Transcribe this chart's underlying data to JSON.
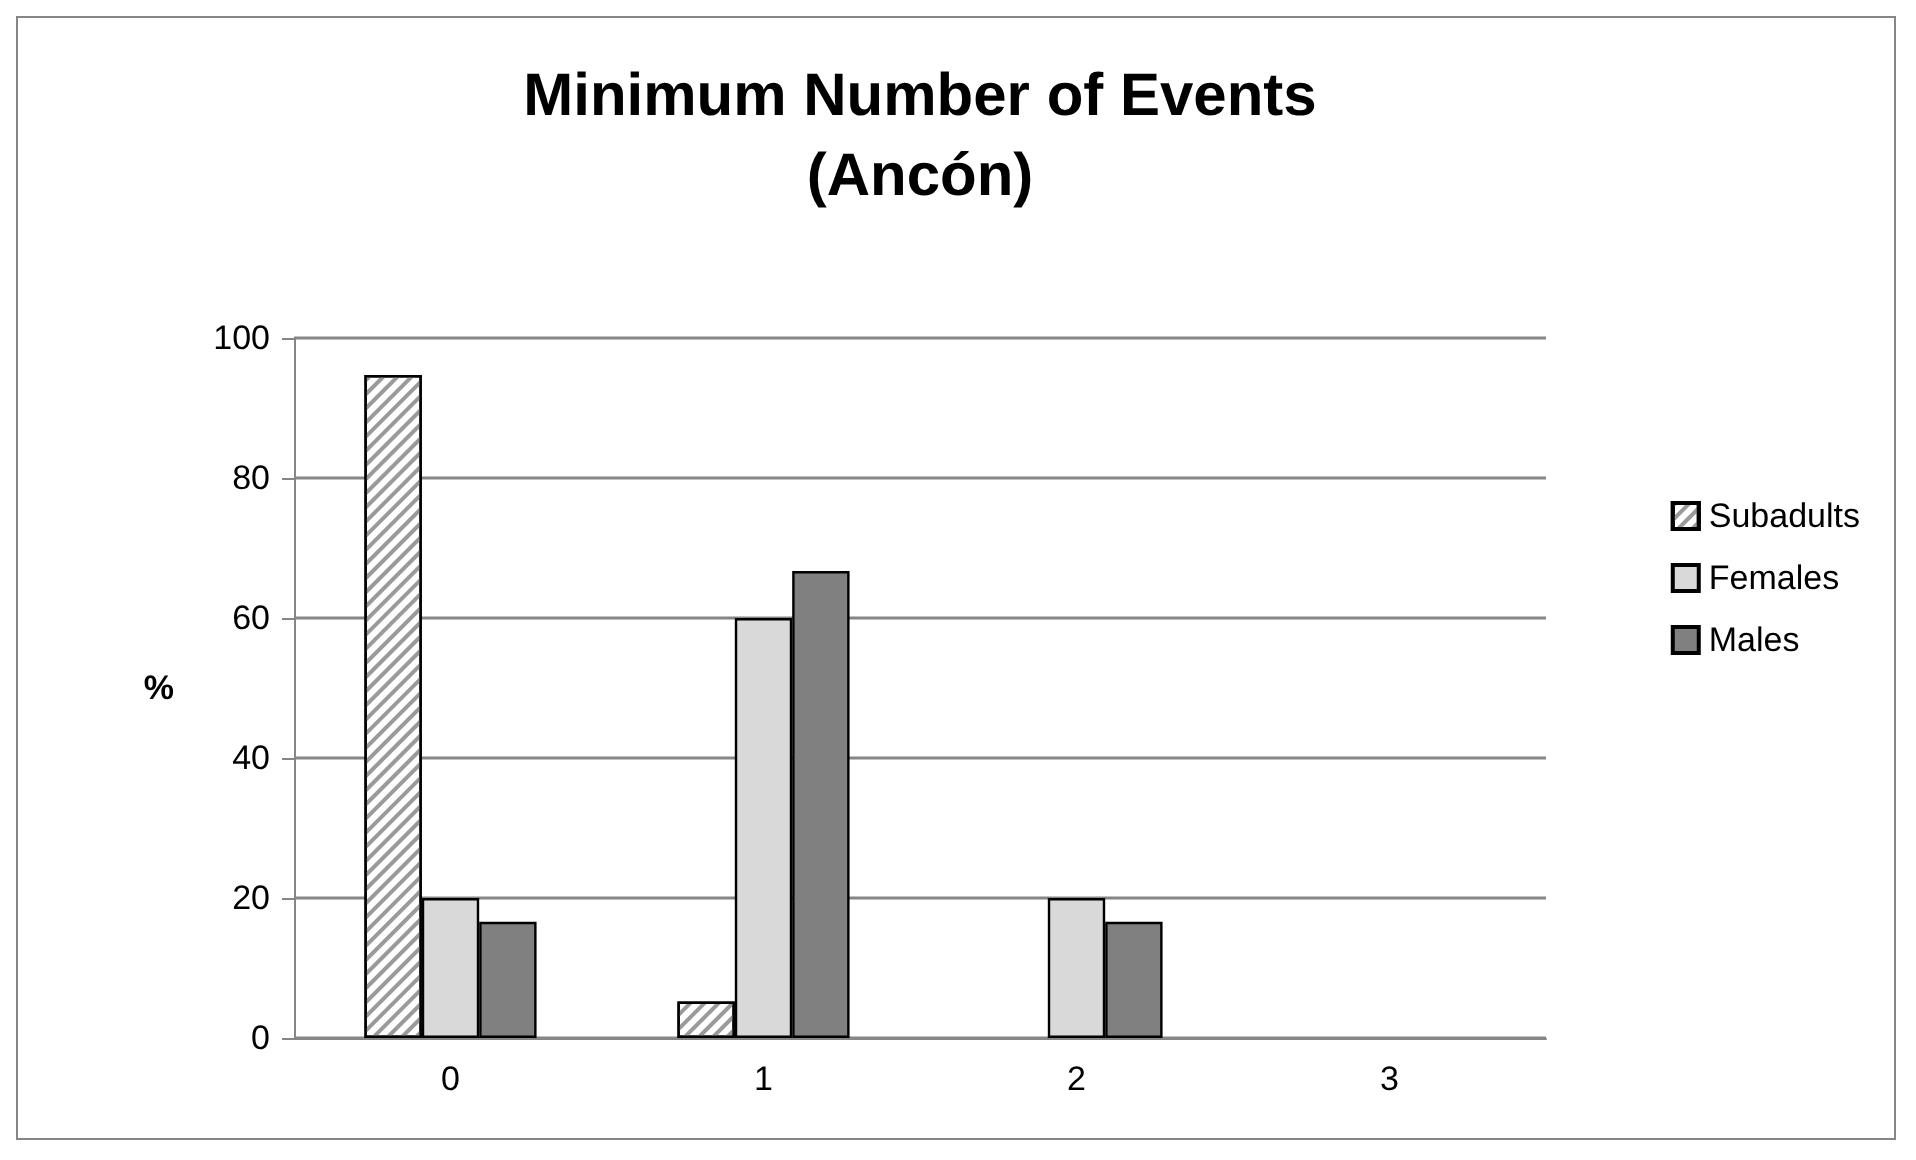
{
  "chart_data": {
    "type": "bar",
    "title": "Minimum Number of Events\n(Ancón)",
    "ylabel": "%",
    "categories": [
      "0",
      "1",
      "2",
      "3"
    ],
    "series": [
      {
        "name": "Subadults",
        "color": "#ffffff",
        "values": [
          94.7,
          5.2,
          null,
          null
        ]
      },
      {
        "name": "Females",
        "color": "#d9d9d9",
        "values": [
          20,
          60,
          20,
          null
        ]
      },
      {
        "name": "Males",
        "color": "#808080",
        "values": [
          16.6,
          66.7,
          16.6,
          null
        ]
      }
    ],
    "ylim": [
      0,
      100
    ],
    "yticks": [
      0,
      20,
      40,
      60,
      80,
      100
    ],
    "grid": "y",
    "legend": "right"
  }
}
